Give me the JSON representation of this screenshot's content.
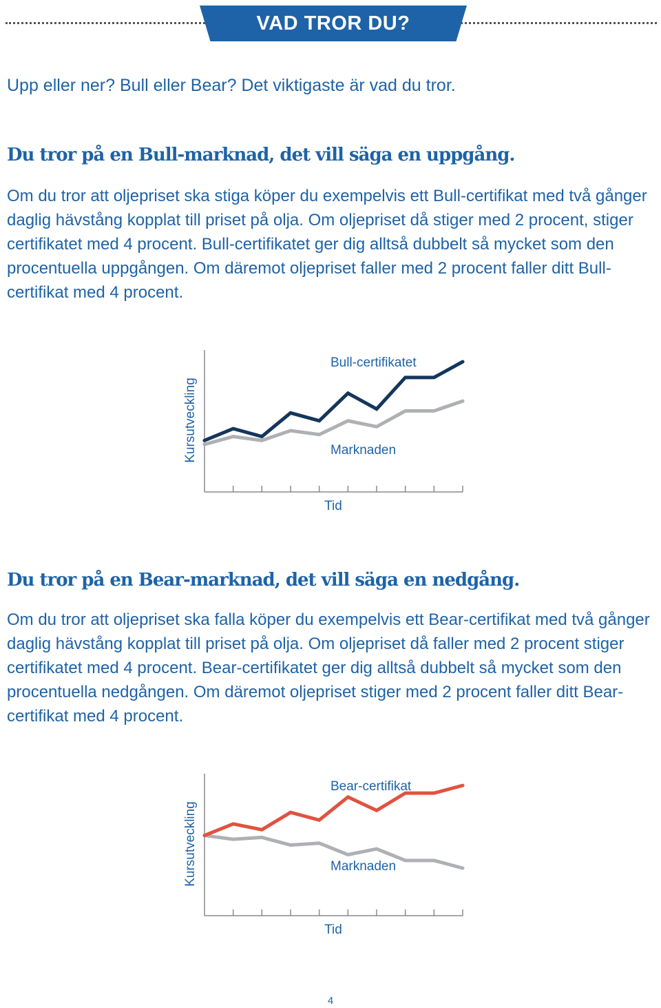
{
  "header": {
    "title": "VAD TROR DU?"
  },
  "intro": "Upp eller ner? Bull eller Bear? Det viktigaste är vad du tror.",
  "bull_section": {
    "heading": "Du tror på en Bull-marknad, det vill säga en uppgång.",
    "paragraph": "Om du tror att oljepriset ska stiga köper du exempelvis ett Bull-certifikat med två gånger daglig hävstång kopplat till priset på olja. Om oljepriset då stiger med 2 procent, stiger certifikatet med 4 procent. Bull-certifikatet ger dig alltså dubbelt så mycket som den procentuella uppgången. Om däremot oljepriset faller med 2 procent faller ditt Bull-certifikat med 4 procent."
  },
  "bear_section": {
    "heading": "Du tror på en Bear-marknad, det vill säga en nedgång.",
    "paragraph": "Om du tror att oljepriset ska falla köper du exempelvis ett Bear-certifikat med två gånger daglig hävstång kopplat till priset på olja. Om oljepriset då faller med 2 procent stiger certifikatet med 4 procent. Bear-certifikatet ger dig alltså dubbelt så mycket som den procentuella nedgången. Om däremot oljepriset stiger med 2 procent faller ditt Bear-certifikat med 4 procent."
  },
  "chart_data": [
    {
      "type": "line",
      "ylabel": "Kursutveckling",
      "xlabel": "Tid",
      "grid": false,
      "x": [
        0,
        1,
        2,
        3,
        4,
        5,
        6,
        7,
        8,
        9
      ],
      "series": [
        {
          "name": "Bull-certifikatet",
          "color": "#15365c",
          "values": [
            1,
            4,
            2,
            8,
            6,
            13,
            9,
            17,
            17,
            21
          ]
        },
        {
          "name": "Marknaden",
          "color": "#aeb0b3",
          "values": [
            0,
            2,
            1,
            3.5,
            2.5,
            6,
            4.5,
            8.5,
            8.5,
            11
          ]
        }
      ]
    },
    {
      "type": "line",
      "ylabel": "Kursutveckling",
      "xlabel": "Tid",
      "grid": false,
      "x": [
        0,
        1,
        2,
        3,
        4,
        5,
        6,
        7,
        8,
        9
      ],
      "series": [
        {
          "name": "Bear-certifikat",
          "color": "#e0533f",
          "values": [
            10,
            13,
            11.5,
            16,
            14,
            20,
            16.5,
            21,
            21,
            23
          ]
        },
        {
          "name": "Marknaden",
          "color": "#aeb0b3",
          "values": [
            10,
            9,
            9.5,
            7.5,
            8,
            5,
            6.5,
            3.5,
            3.5,
            1.5
          ]
        }
      ]
    }
  ],
  "page_number": "4"
}
